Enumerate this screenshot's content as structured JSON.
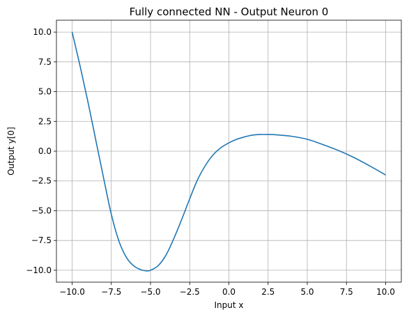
{
  "chart_data": {
    "type": "line",
    "title": "Fully connected NN - Output Neuron 0",
    "xlabel": "Input x",
    "ylabel": "Output y[0]",
    "xlim": [
      -11.0,
      11.0
    ],
    "ylim": [
      -11.0,
      11.0
    ],
    "xticks": [
      -10.0,
      -7.5,
      -5.0,
      -2.5,
      0.0,
      2.5,
      5.0,
      7.5,
      10.0
    ],
    "xtick_labels": [
      "−10.0",
      "−7.5",
      "−5.0",
      "−2.5",
      "0.0",
      "2.5",
      "5.0",
      "7.5",
      "10.0"
    ],
    "yticks": [
      -10.0,
      -7.5,
      -5.0,
      -2.5,
      0.0,
      2.5,
      5.0,
      7.5,
      10.0
    ],
    "ytick_labels": [
      "−10.0",
      "−7.5",
      "−5.0",
      "−2.5",
      "0.0",
      "2.5",
      "5.0",
      "7.5",
      "10.0"
    ],
    "grid": true,
    "line_color": "#1f77b4",
    "series": [
      {
        "x": [
          -10.0,
          -9.5,
          -9.0,
          -8.5,
          -8.0,
          -7.5,
          -7.0,
          -6.5,
          -6.0,
          -5.5,
          -5.2,
          -5.0,
          -4.5,
          -4.0,
          -3.5,
          -3.0,
          -2.5,
          -2.0,
          -1.5,
          -1.0,
          -0.5,
          0.0,
          0.5,
          1.0,
          1.5,
          2.0,
          2.5,
          3.0,
          4.0,
          5.0,
          6.0,
          7.0,
          8.0,
          9.0,
          10.0
        ],
        "y": [
          10.0,
          7.2,
          4.2,
          1.0,
          -2.2,
          -5.3,
          -7.6,
          -9.0,
          -9.7,
          -10.0,
          -10.05,
          -10.0,
          -9.6,
          -8.7,
          -7.3,
          -5.7,
          -4.0,
          -2.4,
          -1.2,
          -0.3,
          0.3,
          0.7,
          1.0,
          1.2,
          1.35,
          1.4,
          1.4,
          1.38,
          1.25,
          1.0,
          0.55,
          0.05,
          -0.55,
          -1.25,
          -2.0
        ]
      }
    ]
  }
}
